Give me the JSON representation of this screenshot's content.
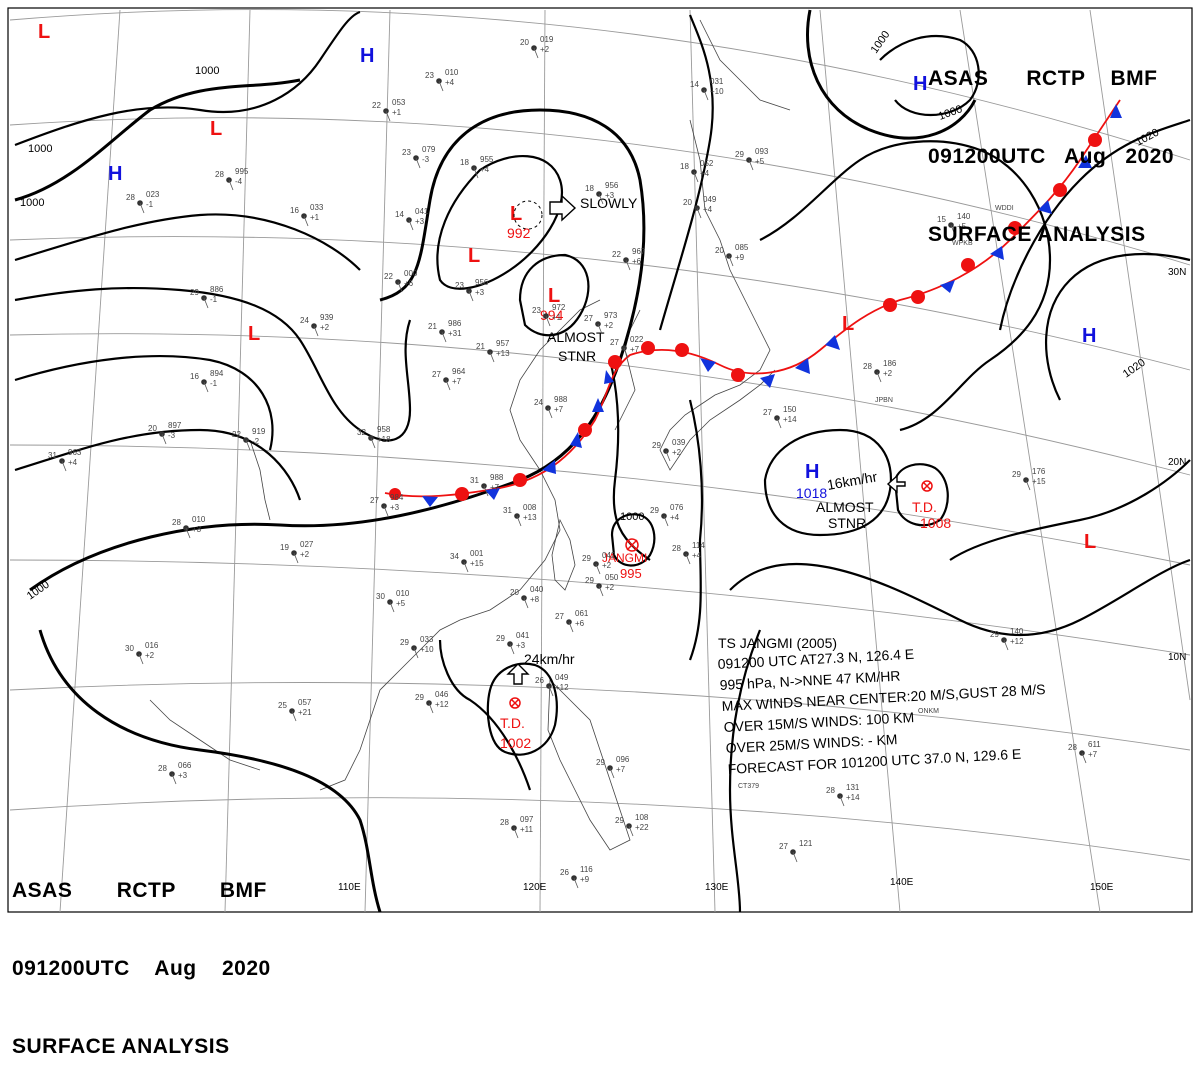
{
  "header": {
    "agency": "ASAS",
    "station": "RCTP",
    "office": "BMF",
    "time": "091200UTC",
    "month": "Aug",
    "year": "2020",
    "title": "SURFACE ANALYSIS"
  },
  "colors": {
    "low": "#ee1111",
    "high": "#1111dd",
    "front_red": "#ee1111",
    "front_blue": "#1133dd",
    "isobar": "#000000",
    "grid": "#9a9a9a"
  },
  "grid_labels": {
    "lon": [
      "110E",
      "120E",
      "130E",
      "140E",
      "150E"
    ],
    "lat": [
      "30N",
      "20N",
      "10N"
    ]
  },
  "isobar_labels": [
    "1000",
    "1000",
    "1000",
    "1000",
    "1000",
    "1020",
    "1020",
    "1000",
    "1000"
  ],
  "pressure_systems": [
    {
      "type": "L"
    },
    {
      "type": "L"
    },
    {
      "type": "L"
    },
    {
      "type": "L"
    },
    {
      "type": "L"
    },
    {
      "type": "L"
    },
    {
      "type": "L"
    },
    {
      "type": "L"
    },
    {
      "type": "H"
    },
    {
      "type": "H"
    },
    {
      "type": "H"
    },
    {
      "type": "H"
    },
    {
      "type": "H"
    }
  ],
  "system_labels": {
    "low_992": "992",
    "low_994": "994",
    "high_1018": "1018",
    "td_1008_name": "T.D.",
    "td_1008_value": "1008",
    "td_1002_name": "T.D.",
    "td_1002_value": "1002",
    "jangmi_name": "JANGMI",
    "jangmi_value": "995"
  },
  "motion": {
    "slowly": "SLOWLY",
    "almost1": "ALMOST",
    "stnr1": "STNR",
    "speed_high": "16km/hr",
    "almost2": "ALMOST",
    "stnr2": "STNR",
    "speed_td": "24km/hr"
  },
  "storm_info": [
    "TS  JANGMI  (2005)",
    "091200 UTC  AT27.3 N, 126.4 E",
    "995 hPa, N->NNE  47 KM/HR",
    "MAX WINDS NEAR CENTER:20 M/S,GUST 28 M/S",
    "OVER 15M/S WINDS: 100 KM",
    "OVER 25M/S WINDS: - KM",
    "FORECAST FOR 101200 UTC 37.0 N, 129.6 E"
  ],
  "stations": [
    {
      "t": "20",
      "p": "019",
      "d": "+2"
    },
    {
      "t": "23",
      "p": "010",
      "d": "+4"
    },
    {
      "t": "22",
      "p": "053",
      "d": "+1"
    },
    {
      "t": "23",
      "p": "079",
      "d": "-3"
    },
    {
      "t": "28",
      "p": "995",
      "d": "-4"
    },
    {
      "t": "18",
      "p": "955",
      "d": "+4"
    },
    {
      "t": "18",
      "p": "956",
      "d": "+3"
    },
    {
      "t": "14",
      "p": "041",
      "d": "+3"
    },
    {
      "t": "16",
      "p": "033",
      "d": "+1"
    },
    {
      "t": "28",
      "p": "023",
      "d": "-1"
    },
    {
      "t": "22",
      "p": "967",
      "d": "+6"
    },
    {
      "t": "22",
      "p": "000",
      "d": "+6"
    },
    {
      "t": "23",
      "p": "956",
      "d": "+3"
    },
    {
      "t": "29",
      "p": "886",
      "d": "-1"
    },
    {
      "t": "24",
      "p": "939",
      "d": "+2"
    },
    {
      "t": "21",
      "p": "986",
      "d": "+31"
    },
    {
      "t": "21",
      "p": "957",
      "d": "+13"
    },
    {
      "t": "23",
      "p": "972",
      "d": "+1"
    },
    {
      "t": "27",
      "p": "973",
      "d": "+2"
    },
    {
      "t": "27",
      "p": "964",
      "d": "+7"
    },
    {
      "t": "16",
      "p": "894",
      "d": "-1"
    },
    {
      "t": "20",
      "p": "897",
      "d": "-3"
    },
    {
      "t": "22",
      "p": "919",
      "d": "-2"
    },
    {
      "t": "32",
      "p": "958",
      "d": "+18"
    },
    {
      "t": "31",
      "p": "963",
      "d": "+4"
    },
    {
      "t": "31",
      "p": "988",
      "d": "+7"
    },
    {
      "t": "27",
      "p": "984",
      "d": "+3"
    },
    {
      "t": "28",
      "p": "010",
      "d": "+3"
    },
    {
      "t": "19",
      "p": "027",
      "d": "+2"
    },
    {
      "t": "31",
      "p": "008",
      "d": "+13"
    },
    {
      "t": "34",
      "p": "001",
      "d": "+15"
    },
    {
      "t": "29",
      "p": "042",
      "d": "+2"
    },
    {
      "t": "30",
      "p": "010",
      "d": "+5"
    },
    {
      "t": "29",
      "p": "033",
      "d": "+10"
    },
    {
      "t": "30",
      "p": "016",
      "d": "+2"
    },
    {
      "t": "29",
      "p": "046",
      "d": "+12"
    },
    {
      "t": "25",
      "p": "057",
      "d": "+21"
    },
    {
      "t": "29",
      "p": "041",
      "d": "+3"
    },
    {
      "t": "28",
      "p": "066",
      "d": "+3"
    },
    {
      "t": "28",
      "p": "097",
      "d": "+11"
    },
    {
      "t": "26",
      "p": "116",
      "d": "+9"
    },
    {
      "t": "29",
      "p": "108",
      "d": "+22"
    },
    {
      "t": "27",
      "p": "121",
      "d": ""
    },
    {
      "t": "28",
      "p": "131",
      "d": "+14"
    },
    {
      "t": "28",
      "p": "186",
      "d": "+2"
    },
    {
      "t": "29",
      "p": "176",
      "d": "+15"
    },
    {
      "t": "29",
      "p": "140",
      "d": "+12"
    },
    {
      "t": "28",
      "p": "611",
      "d": "+7"
    },
    {
      "t": "27",
      "p": "150",
      "d": "+14"
    },
    {
      "t": "15",
      "p": "140",
      "d": "+5"
    },
    {
      "t": "29",
      "p": "093",
      "d": "+5"
    },
    {
      "t": "14",
      "p": "031",
      "d": "+10"
    },
    {
      "t": "18",
      "p": "052",
      "d": "+4"
    },
    {
      "t": "20",
      "p": "049",
      "d": "+4"
    },
    {
      "t": "20",
      "p": "085",
      "d": "+9"
    },
    {
      "t": "29",
      "p": "076",
      "d": "+4"
    },
    {
      "t": "29",
      "p": "039",
      "d": "+2"
    },
    {
      "t": "28",
      "p": "114",
      "d": "+4"
    },
    {
      "t": "20",
      "p": "040",
      "d": "+8"
    },
    {
      "t": "27",
      "p": "061",
      "d": "+6"
    },
    {
      "t": "26",
      "p": "049",
      "d": "+12"
    },
    {
      "t": "29",
      "p": "050",
      "d": "+2"
    },
    {
      "t": "27",
      "p": "022",
      "d": "+7"
    },
    {
      "t": "24",
      "p": "988",
      "d": "+7"
    },
    {
      "t": "29",
      "p": "096",
      "d": "+7"
    }
  ],
  "station_ids": [
    "WDDI",
    "WPKB",
    "JPBN",
    "ONKM",
    "CT379"
  ]
}
